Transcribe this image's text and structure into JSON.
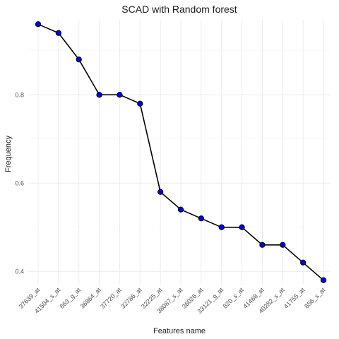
{
  "chart_data": {
    "type": "line",
    "title": "SCAD with Random forest",
    "xlabel": "Features name",
    "ylabel": "Frequency",
    "categories": [
      "37639_at",
      "41504_s_at",
      "863_g_at",
      "36864_at",
      "37720_at",
      "32786_at",
      "32225_at",
      "38087_s_at",
      "36026_at",
      "33121_g_at",
      "820_s_at",
      "41468_at",
      "40282_s_at",
      "41755_at",
      "856_s_at"
    ],
    "values": [
      0.96,
      0.94,
      0.88,
      0.8,
      0.8,
      0.78,
      0.58,
      0.54,
      0.52,
      0.5,
      0.5,
      0.46,
      0.46,
      0.42,
      0.38
    ],
    "ylim": [
      0.37,
      0.97
    ],
    "yticks": [
      0.4,
      0.6,
      0.8
    ],
    "ytick_labels": [
      "0.4",
      "0.6",
      "0.8"
    ],
    "grid": true,
    "colors": {
      "point_fill": "#0000ff",
      "line": "#000000",
      "grid": "#ebebeb"
    }
  }
}
